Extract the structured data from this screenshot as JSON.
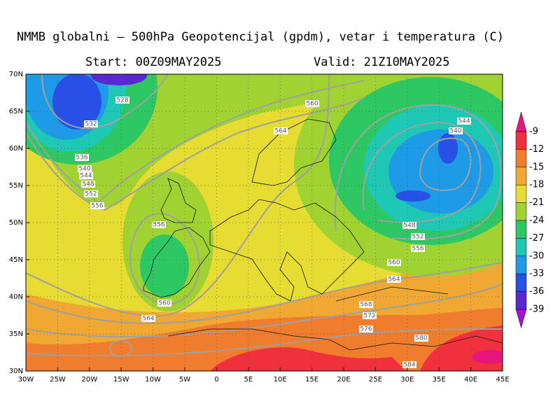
{
  "title": "NMMB globalni – 500hPa Geopotencijal (gpdm), vetar i temperatura (C)",
  "start": "Start: 00Z09MAY2025",
  "valid": "Valid: 21Z10MAY2025",
  "lat_labels": [
    "30N",
    "35N",
    "40N",
    "45N",
    "50N",
    "55N",
    "60N",
    "65N",
    "70N"
  ],
  "lon_labels": [
    "30W",
    "25W",
    "20W",
    "15W",
    "10W",
    "5W",
    "0",
    "5E",
    "10E",
    "15E",
    "20E",
    "25E",
    "30E",
    "35E",
    "40E",
    "45E"
  ],
  "colorbar": {
    "labels": [
      -9,
      -12,
      -15,
      -18,
      -21,
      -24,
      -27,
      -30,
      -33,
      -36,
      -39
    ],
    "colors": [
      "#e8157a",
      "#f0303c",
      "#f07d2d",
      "#f0a832",
      "#e6dc32",
      "#a0d232",
      "#2dc864",
      "#1ec8b4",
      "#1e9be6",
      "#2850e6",
      "#5a28d2",
      "#a014d2"
    ]
  },
  "contour_labels": [
    "528",
    "532",
    "536",
    "540",
    "544",
    "548",
    "552",
    "556",
    "556",
    "560",
    "564",
    "560",
    "564",
    "544",
    "540",
    "548",
    "552",
    "556",
    "560",
    "564",
    "568",
    "572",
    "576",
    "580",
    "584"
  ]
}
